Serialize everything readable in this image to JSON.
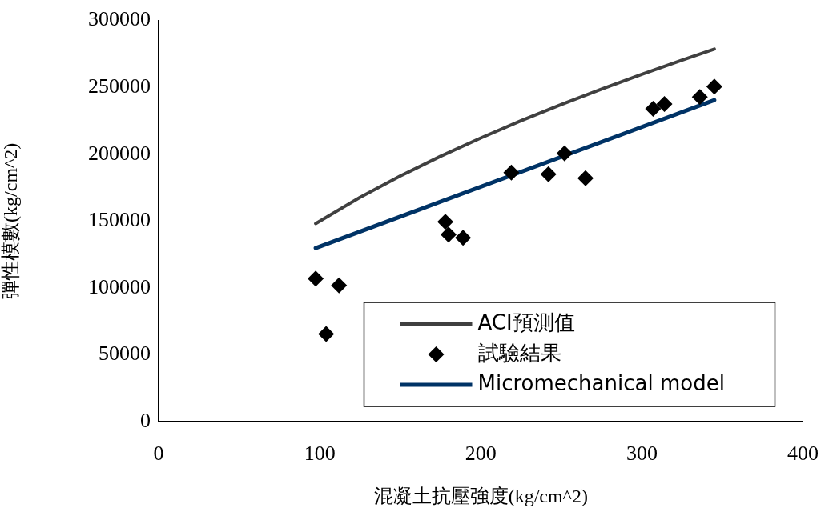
{
  "chart_data": {
    "type": "scatter",
    "xlabel": "混凝土抗壓強度(kg/cm^2)",
    "ylabel": "彈性模數(kg/cm^2)",
    "xlim": [
      0,
      400
    ],
    "xticks": [
      0,
      100,
      200,
      300,
      400
    ],
    "ylim": [
      0,
      300000
    ],
    "yticks": [
      0,
      50000,
      100000,
      150000,
      200000,
      250000,
      300000
    ],
    "grid": false,
    "legend": "bottom right",
    "series": [
      {
        "name": "ACI預測值",
        "type": "line",
        "color": "#404040",
        "marker": "none",
        "x": [
          97.5,
          125,
          150,
          175,
          200,
          225,
          250,
          275,
          300,
          325,
          345
        ],
        "values": [
          148100,
          167700,
          183700,
          198400,
          212100,
          225000,
          237200,
          248700,
          259800,
          270400,
          278600
        ]
      },
      {
        "name": "試驗結果",
        "type": "scatter",
        "color": "#000000",
        "marker": "diamond",
        "x": [
          97.5,
          104,
          112,
          178,
          180,
          189,
          219,
          242,
          252,
          265,
          307,
          314,
          336,
          345
        ],
        "values": [
          107000,
          65500,
          101800,
          149400,
          139900,
          137500,
          186300,
          185100,
          200600,
          182100,
          233900,
          237500,
          242800,
          250600
        ]
      },
      {
        "name": "Micromechanical model",
        "type": "line",
        "color": "#003366",
        "marker": "none",
        "x": [
          97.5,
          345
        ],
        "values": [
          129800,
          240500
        ]
      }
    ]
  }
}
